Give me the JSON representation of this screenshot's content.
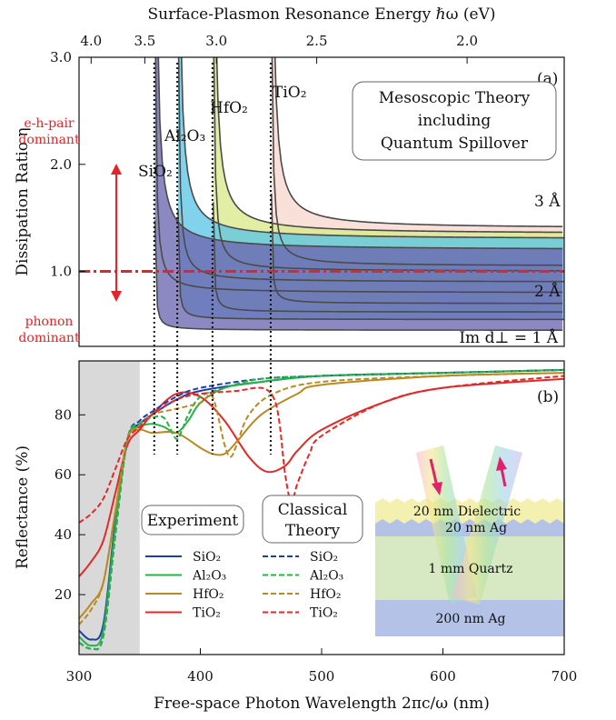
{
  "colors": {
    "red": "#e5232a",
    "shade_gray": "#d9d9d9",
    "sio2_fill": "#6c66b0",
    "al2o3_fill": "#5cc6e6",
    "hfo2_fill": "#d8e98a",
    "tio2_fill": "#f7d9cf",
    "exp_sio2": "#1f3fa6",
    "exp_al2o3": "#2ab24a",
    "exp_hfo2": "#b98a22",
    "exp_tio2": "#e02a2a"
  },
  "chart_data": [
    {
      "panel": "a",
      "type": "line",
      "panel_label": "(a)",
      "xlabel_top": "Surface-Plasmon Resonance Energy ℏω (eV)",
      "ylabel": "Dissipation Ratio η",
      "xlim_wavelength_nm": [
        300,
        700
      ],
      "ylim": [
        0.3,
        3.0
      ],
      "top_ticks_eV": [
        "4.0",
        "3.5",
        "3.0",
        "2.5",
        "2.0"
      ],
      "top_ticks_eV_values": [
        4.0,
        3.5,
        3.0,
        2.5,
        2.0
      ],
      "yticks": [
        "1.0",
        "2.0",
        "3.0"
      ],
      "ytick_values": [
        1.0,
        2.0,
        3.0
      ],
      "reference_line": 1.0,
      "annotations": {
        "box": [
          "Mesoscopic Theory",
          "including",
          "Quantum Spillover"
        ],
        "eh_pair": [
          "e-h-pair",
          "dominant"
        ],
        "phonon": [
          "phonon",
          "dominant"
        ],
        "spillover_labels": [
          "3 Å",
          "2 Å",
          "Im d⊥ = 1 Å"
        ]
      },
      "resonances_nm": {
        "SiO2": 362,
        "Al2O3": 381,
        "HfO2": 410,
        "TiO2": 458
      },
      "series_labels": [
        "SiO₂",
        "Al₂O₃",
        "HfO₂",
        "TiO₂"
      ],
      "asymptotes": {
        "SiO2": {
          "d1": 0.45,
          "d2": 0.8,
          "d3": 1.2
        },
        "Al2O3": {
          "d1": 0.55,
          "d2": 0.9,
          "d3": 1.3
        },
        "HfO2": {
          "d1": 0.62,
          "d2": 1.0,
          "d3": 1.35
        },
        "TiO2": {
          "d1": 0.7,
          "d2": 1.05,
          "d3": 1.4
        }
      }
    },
    {
      "panel": "b",
      "type": "line",
      "panel_label": "(b)",
      "xlabel": "Free-space Photon Wavelength 2πc/ω (nm)",
      "ylabel": "Reflectance (%)",
      "xlim": [
        300,
        700
      ],
      "ylim": [
        0,
        98
      ],
      "xticks": [
        "300",
        "400",
        "500",
        "600",
        "700"
      ],
      "xtick_values": [
        300,
        400,
        500,
        600,
        700
      ],
      "yticks": [
        "20",
        "40",
        "60",
        "80"
      ],
      "ytick_values": [
        20,
        40,
        60,
        80
      ],
      "shaded_region_nm": [
        300,
        350
      ],
      "legend": {
        "experiment_title": "Experiment",
        "classical_title": [
          "Classical",
          "Theory"
        ],
        "entries": [
          "SiO₂",
          "Al₂O₃",
          "HfO₂",
          "TiO₂"
        ]
      },
      "inset": {
        "dielectric": "20 nm Dielectric",
        "ag_top": "20 nm Ag",
        "quartz": "1 mm Quartz",
        "ag_bottom": "200 nm Ag"
      },
      "series": [
        {
          "name": "SiO₂",
          "style": "experiment",
          "x": [
            300,
            310,
            320,
            330,
            340,
            350,
            360,
            380,
            400,
            450,
            500,
            600,
            700
          ],
          "y": [
            8,
            5,
            10,
            45,
            72,
            77,
            80,
            85,
            88,
            91,
            93,
            94,
            95
          ]
        },
        {
          "name": "Al₂O₃",
          "style": "experiment",
          "x": [
            300,
            310,
            320,
            330,
            340,
            350,
            360,
            370,
            380,
            390,
            400,
            420,
            450,
            500,
            600,
            700
          ],
          "y": [
            6,
            3,
            8,
            43,
            72,
            76,
            77,
            76,
            74,
            78,
            84,
            89,
            91,
            93,
            94,
            95
          ]
        },
        {
          "name": "HfO₂",
          "style": "experiment",
          "x": [
            300,
            310,
            320,
            330,
            340,
            350,
            360,
            380,
            400,
            410,
            420,
            430,
            450,
            480,
            500,
            600,
            700
          ],
          "y": [
            12,
            17,
            24,
            48,
            72,
            75,
            74,
            74,
            69,
            67,
            67,
            71,
            80,
            87,
            90,
            93,
            94
          ]
        },
        {
          "name": "TiO₂",
          "style": "experiment",
          "x": [
            300,
            310,
            320,
            330,
            340,
            350,
            360,
            380,
            400,
            420,
            440,
            455,
            470,
            480,
            500,
            550,
            600,
            700
          ],
          "y": [
            26,
            31,
            38,
            54,
            70,
            75,
            80,
            87,
            86,
            78,
            66,
            61,
            63,
            68,
            75,
            84,
            89,
            92
          ]
        },
        {
          "name": "SiO₂",
          "style": "classical",
          "x": [
            300,
            310,
            320,
            330,
            340,
            350,
            360,
            380,
            400,
            450,
            500,
            600,
            700
          ],
          "y": [
            4,
            2,
            6,
            40,
            72,
            78,
            81,
            86,
            89,
            92,
            93,
            94,
            95
          ]
        },
        {
          "name": "Al₂O₃",
          "style": "classical",
          "x": [
            300,
            310,
            320,
            330,
            340,
            350,
            360,
            370,
            380,
            385,
            390,
            400,
            420,
            450,
            500,
            600,
            700
          ],
          "y": [
            4,
            2,
            6,
            40,
            72,
            77,
            79,
            79,
            72,
            75,
            80,
            86,
            89,
            92,
            93,
            94,
            95
          ]
        },
        {
          "name": "HfO₂",
          "style": "classical",
          "x": [
            300,
            310,
            320,
            330,
            340,
            350,
            360,
            380,
            400,
            410,
            420,
            425,
            430,
            440,
            460,
            500,
            600,
            700
          ],
          "y": [
            10,
            15,
            24,
            48,
            72,
            76,
            80,
            82,
            84,
            86,
            70,
            66,
            70,
            80,
            87,
            91,
            93,
            94
          ]
        },
        {
          "name": "TiO₂",
          "style": "classical",
          "x": [
            300,
            310,
            320,
            330,
            340,
            350,
            360,
            380,
            400,
            430,
            450,
            460,
            465,
            470,
            475,
            480,
            490,
            500,
            550,
            600,
            700
          ],
          "y": [
            44,
            47,
            52,
            62,
            72,
            76,
            80,
            85,
            87,
            88,
            89,
            86,
            78,
            60,
            51,
            57,
            67,
            73,
            84,
            89,
            93
          ]
        }
      ]
    }
  ]
}
